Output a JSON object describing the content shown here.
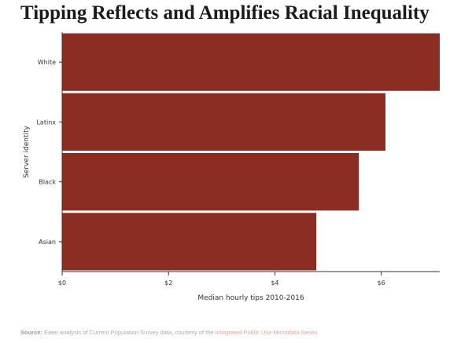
{
  "chart_data": {
    "type": "bar",
    "orientation": "horizontal",
    "title": "Tipping Reflects and Amplifies Racial Inequality",
    "xlabel": "Median hourly tips 2010-2016",
    "ylabel": "Server identity",
    "categories": [
      "White",
      "Latinx",
      "Black",
      "Asian"
    ],
    "values": [
      7.1,
      6.08,
      5.58,
      4.78
    ],
    "xlim": [
      0,
      7.1
    ],
    "xticks": [
      0,
      2,
      4,
      6
    ],
    "xtick_labels": [
      "$0",
      "$2",
      "$4",
      "$6"
    ],
    "bar_color": "#8b2d22",
    "grid": false
  },
  "source": {
    "label": "Source:",
    "text": " Eater analysis of Current Population Survey data, courtesy of the ",
    "link_text": "Integrated Public Use Microdata Series",
    "link_color": "#e8a39f"
  }
}
